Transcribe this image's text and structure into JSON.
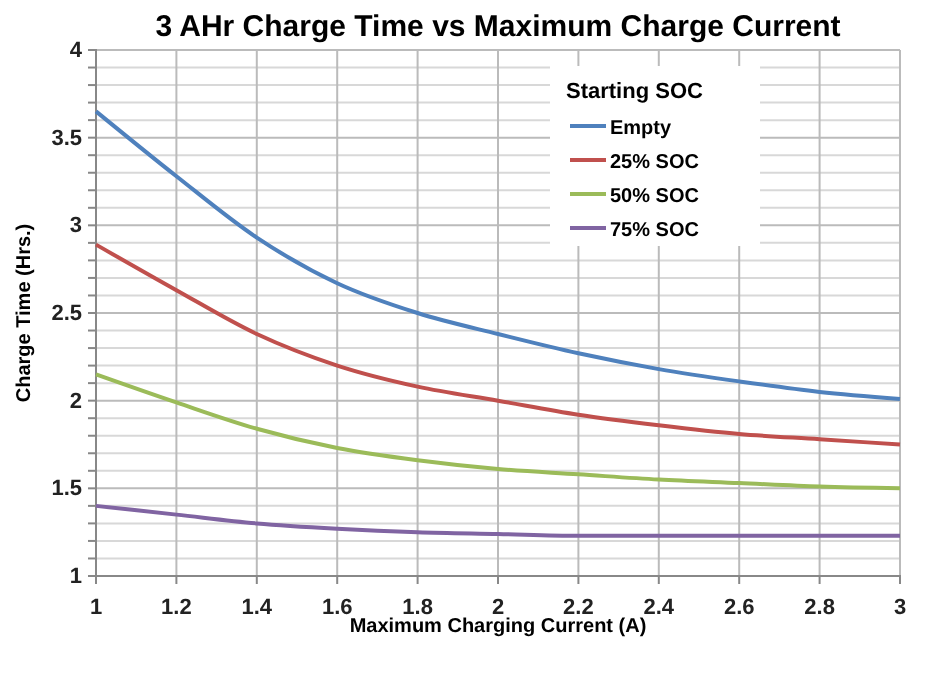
{
  "chart_data": {
    "type": "line",
    "title": "3 AHr Charge Time vs Maximum Charge Current",
    "xlabel": "Maximum Charging Current (A)",
    "ylabel": "Charge Time (Hrs.)",
    "legend_title": "Starting SOC",
    "x": [
      1,
      1.2,
      1.4,
      1.6,
      1.8,
      2,
      2.2,
      2.4,
      2.6,
      2.8,
      3
    ],
    "series": [
      {
        "name": "Empty",
        "color": "#4f81bd",
        "values": [
          3.65,
          3.28,
          2.93,
          2.67,
          2.5,
          2.38,
          2.27,
          2.18,
          2.11,
          2.05,
          2.01
        ]
      },
      {
        "name": "25% SOC",
        "color": "#c0504d",
        "values": [
          2.89,
          2.63,
          2.38,
          2.2,
          2.08,
          2.0,
          1.92,
          1.86,
          1.81,
          1.78,
          1.75
        ]
      },
      {
        "name": "50% SOC",
        "color": "#9bbb59",
        "values": [
          2.15,
          1.99,
          1.84,
          1.73,
          1.66,
          1.61,
          1.58,
          1.55,
          1.53,
          1.51,
          1.5
        ]
      },
      {
        "name": "75% SOC",
        "color": "#8064a2",
        "values": [
          1.4,
          1.35,
          1.3,
          1.27,
          1.25,
          1.24,
          1.23,
          1.23,
          1.23,
          1.23,
          1.23
        ]
      }
    ],
    "xlim": [
      1,
      3
    ],
    "xticks": [
      1,
      1.2,
      1.4,
      1.6,
      1.8,
      2,
      2.2,
      2.4,
      2.6,
      2.8,
      3
    ],
    "ylim": [
      1,
      4
    ],
    "yticks": [
      1,
      {
        "value": 1.1,
        "label": null
      },
      {
        "value": 1.2,
        "label": null
      },
      {
        "value": 1.3,
        "label": null
      },
      {
        "value": 1.4,
        "label": null
      },
      1.5,
      {
        "value": 1.6,
        "label": null
      },
      {
        "value": 1.7,
        "label": null
      },
      {
        "value": 1.8,
        "label": null
      },
      {
        "value": 1.9,
        "label": null
      },
      2,
      {
        "value": 2.1,
        "label": null
      },
      {
        "value": 2.2,
        "label": null
      },
      {
        "value": 2.3,
        "label": null
      },
      {
        "value": 2.4,
        "label": null
      },
      2.5,
      {
        "value": 2.6,
        "label": null
      },
      {
        "value": 2.7,
        "label": null
      },
      {
        "value": 2.8,
        "label": null
      },
      {
        "value": 2.9,
        "label": null
      },
      3,
      {
        "value": 3.1,
        "label": null
      },
      {
        "value": 3.2,
        "label": null
      },
      {
        "value": 3.3,
        "label": null
      },
      {
        "value": 3.4,
        "label": null
      },
      3.5,
      {
        "value": 3.6,
        "label": null
      },
      {
        "value": 3.7,
        "label": null
      },
      {
        "value": 3.8,
        "label": null
      },
      {
        "value": 3.9,
        "label": null
      },
      4
    ],
    "grid": true,
    "legend": "top right",
    "marker": "none",
    "line_style": "solid"
  }
}
